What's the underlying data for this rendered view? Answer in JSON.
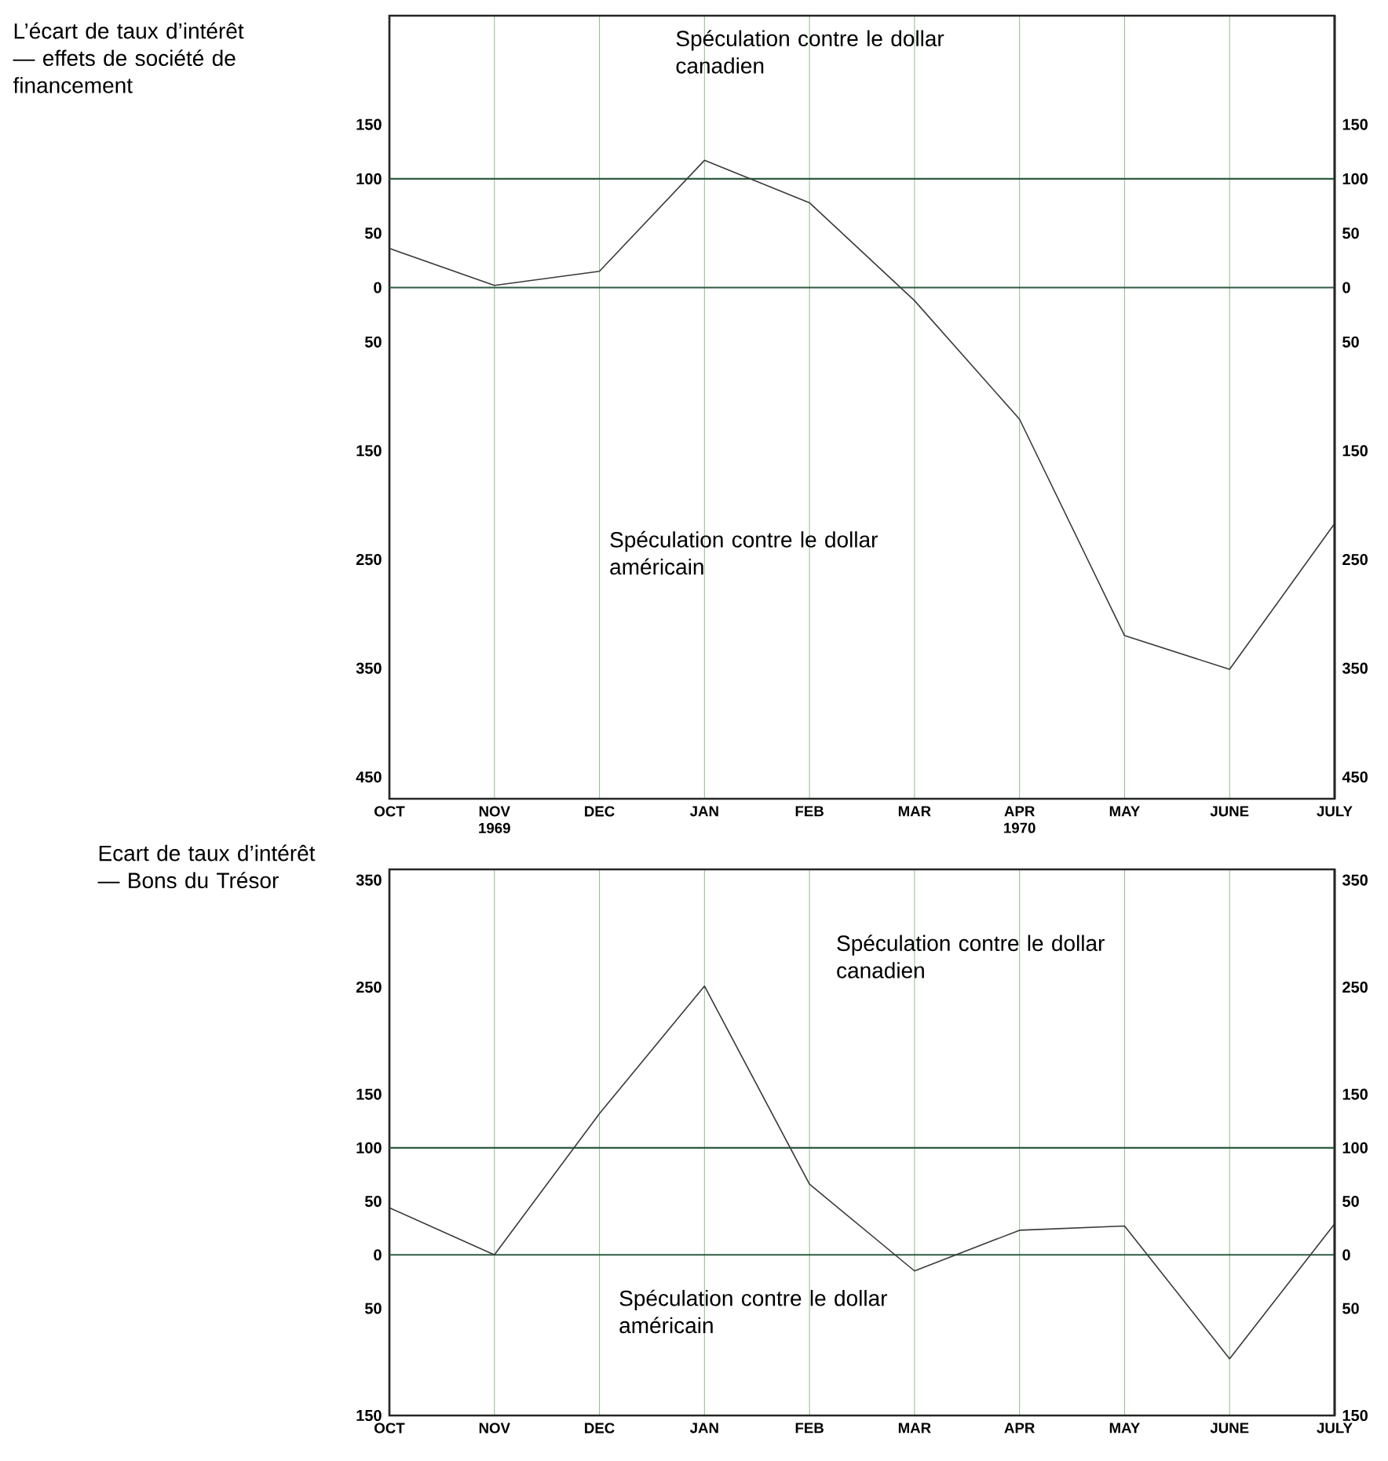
{
  "chart_data": [
    {
      "type": "line",
      "ylabel": "L’écart de taux d’intérêt — effets de société de financement",
      "categories": [
        "OCT",
        "NOV 1969",
        "DEC",
        "JAN",
        "FEB",
        "MAR",
        "APR 1970",
        "MAY",
        "JUNE",
        "JULY"
      ],
      "values": [
        36,
        2,
        15,
        117,
        78,
        -12,
        -121,
        -320,
        -351,
        -217
      ],
      "color": "#3a3a3a",
      "ylim": [
        -470,
        250
      ],
      "yticks": [
        {
          "value": 150,
          "label": "150"
        },
        100,
        50,
        0,
        {
          "value": -50,
          "label": "50"
        },
        {
          "value": -150,
          "label": "150"
        },
        {
          "value": -250,
          "label": "250"
        },
        {
          "value": -350,
          "label": "350"
        },
        {
          "value": -450,
          "label": "450"
        }
      ],
      "y2lim": [
        -470,
        250
      ],
      "y2ticks": [
        {
          "value": 150,
          "label": "150"
        },
        100,
        50,
        0,
        {
          "value": -50,
          "label": "50"
        },
        {
          "value": -150,
          "label": "150"
        },
        {
          "value": -250,
          "label": "250"
        },
        {
          "value": -350,
          "label": "350"
        },
        {
          "value": -450,
          "label": "450"
        }
      ],
      "grid": "x",
      "ref_lines": [
        {
          "axis": "y",
          "value": 100,
          "color": "#2e5c40"
        },
        {
          "axis": "y",
          "value": 0,
          "color": "#2e5c40"
        }
      ],
      "annotations": [
        "Spéculation contre le dollar canadien",
        "Spéculation contre le dollar américain"
      ]
    },
    {
      "type": "line",
      "ylabel": "Ecart de taux d’intérêt — Bons du Trésor",
      "categories": [
        "OCT",
        "NOV",
        "DEC",
        "JAN",
        "FEB",
        "MAR",
        "APR",
        "MAY",
        "JUNE",
        "JULY"
      ],
      "values": [
        44,
        0,
        132,
        251,
        66,
        -15,
        23,
        27,
        -97,
        29
      ],
      "color": "#3a3a3a",
      "ylim": [
        -150,
        360
      ],
      "yticks": [
        350,
        250,
        150,
        100,
        50,
        0,
        {
          "value": -50,
          "label": "50"
        },
        {
          "value": -150,
          "label": "150"
        }
      ],
      "y2lim": [
        -150,
        360
      ],
      "y2ticks": [
        350,
        250,
        150,
        100,
        50,
        0,
        {
          "value": -50,
          "label": "50"
        },
        {
          "value": -150,
          "label": "150"
        }
      ],
      "grid": "x",
      "ref_lines": [
        {
          "axis": "y",
          "value": 100,
          "color": "#2e5c40"
        },
        {
          "axis": "y",
          "value": 0,
          "color": "#2e5c40"
        }
      ],
      "annotations": [
        "Spéculation contre le dollar canadien",
        "Spéculation contre le dollar américain"
      ]
    }
  ]
}
